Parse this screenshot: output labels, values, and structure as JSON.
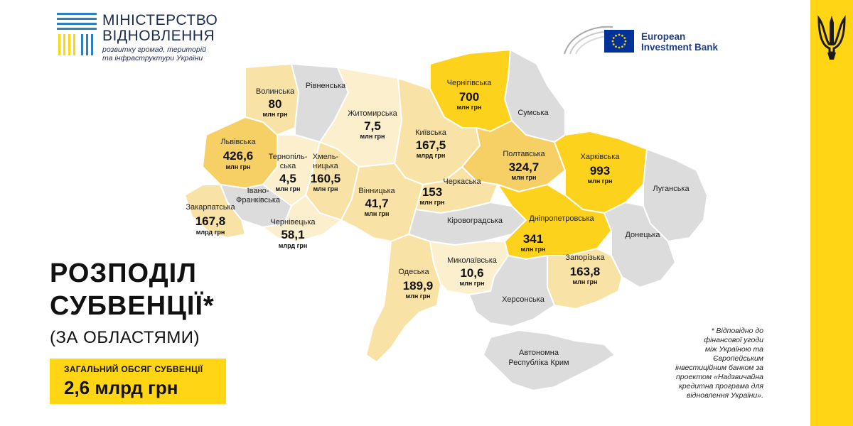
{
  "header": {
    "ministry_title_line1": "МІНІСТЕРСТВО",
    "ministry_title_line2": "ВІДНОВЛЕННЯ",
    "ministry_subtitle_line1": "розвитку громад, територій",
    "ministry_subtitle_line2": "та інфраструктури України",
    "bank_line1": "European",
    "bank_line2": "Investment Bank"
  },
  "headline": {
    "line1": "РОЗПОДІЛ",
    "line2": "СУБВЕНЦІЇ*",
    "subtitle": "(ЗА ОБЛАСТЯМИ)"
  },
  "total": {
    "label": "ЗАГАЛЬНИЙ ОБСЯГ СУБВЕНЦІЇ",
    "value": "2,6 млрд грн"
  },
  "footnote": {
    "line1": "* Відповідно до",
    "line2": "фінансової угоди",
    "line3": "між Україною та",
    "line4": "Європейським",
    "line5": "інвестиційним банком за",
    "line6": "проектом «Надзвичайна",
    "line7": "кредитна програма для",
    "line8": "відновлення України»."
  },
  "colors": {
    "accent_yellow": "#ffd514",
    "level_high": "#fdd21c",
    "level_mid": "#f6d064",
    "level_low": "#f9e2a6",
    "level_min": "#fcefcd",
    "no_data": "#dcdcdc"
  },
  "chart_data": {
    "type": "choropleth",
    "unit": "млн грн",
    "regions": [
      {
        "name": "Волинська",
        "value": 80,
        "value_text": "80",
        "unit_text": "млн грн"
      },
      {
        "name": "Рівненська",
        "value": null
      },
      {
        "name": "Житомирська",
        "value": 7.5,
        "value_text": "7,5",
        "unit_text": "млн грн"
      },
      {
        "name": "Чернігівська",
        "value": 700,
        "value_text": "700",
        "unit_text": "млн грн"
      },
      {
        "name": "Сумська",
        "value": null
      },
      {
        "name": "Львівська",
        "value": 426.6,
        "value_text": "426,6",
        "unit_text": "млн грн"
      },
      {
        "name_line1": "Тернопіль-",
        "name_line2": "ська",
        "name": "Тернопільська",
        "value": 4.5,
        "value_text": "4,5",
        "unit_text": "млн грн"
      },
      {
        "name_line1": "Хмель-",
        "name_line2": "ницька",
        "name": "Хмельницька",
        "value": 160.5,
        "value_text": "160,5",
        "unit_text": "млн грн"
      },
      {
        "name": "Київська",
        "value": 167.5,
        "value_text": "167,5",
        "unit_text": "млрд грн"
      },
      {
        "name": "Полтавська",
        "value": 324.7,
        "value_text": "324,7",
        "unit_text": "млн грн"
      },
      {
        "name": "Харківська",
        "value": 993,
        "value_text": "993",
        "unit_text": "млн грн"
      },
      {
        "name": "Луганська",
        "value": null
      },
      {
        "name_line1": "Івано-",
        "name_line2": "Франківська",
        "name": "Івано-Франківська",
        "value": null
      },
      {
        "name": "Закарпатська",
        "value": 167.8,
        "value_text": "167,8",
        "unit_text": "млрд грн"
      },
      {
        "name": "Вінницька",
        "value": 41.7,
        "value_text": "41,7",
        "unit_text": "млн грн"
      },
      {
        "name": "Черкаська",
        "value": 153,
        "value_text": "153",
        "unit_text": "млн грн"
      },
      {
        "name": "Чернівецька",
        "value": 58.1,
        "value_text": "58,1",
        "unit_text": "млрд грн"
      },
      {
        "name": "Кіровоградська",
        "value": null
      },
      {
        "name": "Дніпропетровська",
        "value": 341,
        "value_text": "341",
        "unit_text": "млн грн"
      },
      {
        "name": "Донецька",
        "value": null
      },
      {
        "name": "Одеська",
        "value": 189.9,
        "value_text": "189,9",
        "unit_text": "млн грн"
      },
      {
        "name": "Миколаївська",
        "value": 10.6,
        "value_text": "10,6",
        "unit_text": "млн грн"
      },
      {
        "name": "Запорізька",
        "value": 163.8,
        "value_text": "163,8",
        "unit_text": "млн грн"
      },
      {
        "name": "Херсонська",
        "value": null
      },
      {
        "name_line1": "Автономна",
        "name_line2": "Республіка Крим",
        "name": "Автономна Республіка Крим",
        "value": null
      }
    ]
  }
}
